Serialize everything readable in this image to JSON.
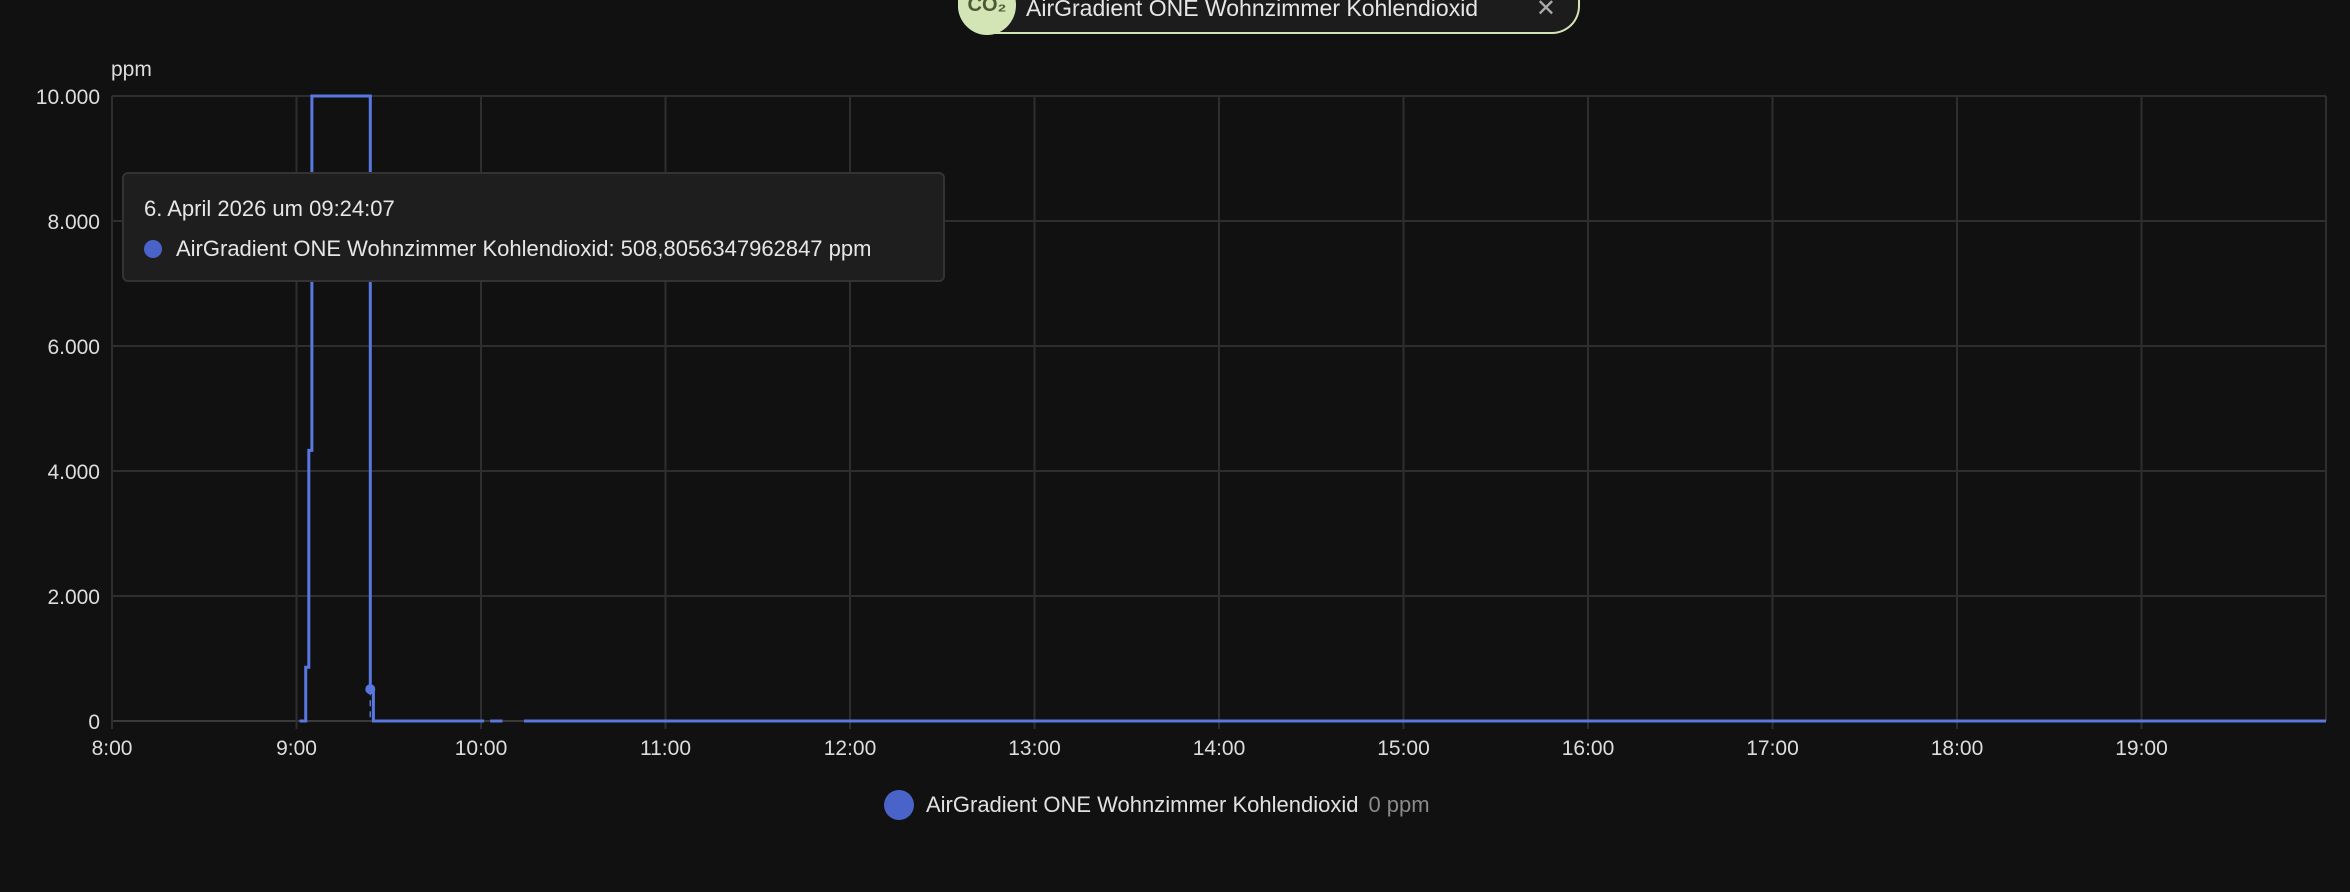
{
  "filter_chip": {
    "icon": "co2-icon",
    "label": "AirGradient ONE Wohnzimmer Kohlendioxid",
    "close": "✕",
    "accent": "#d4e5b5"
  },
  "tooltip": {
    "title": "6. April 2026 um 09:24:07",
    "text": "AirGradient ONE Wohnzimmer Kohlendioxid: 508,8056347962847 ppm"
  },
  "legend": {
    "label": "AirGradient ONE Wohnzimmer Kohlendioxid",
    "value": "0 ppm"
  },
  "chart_data": {
    "type": "line",
    "step": true,
    "ylabel": "ppm",
    "ylim": [
      0,
      10000
    ],
    "yticks": [
      "0",
      "2.000",
      "4.000",
      "6.000",
      "8.000",
      "10.000"
    ],
    "ytick_values": [
      0,
      2000,
      4000,
      6000,
      8000,
      10000
    ],
    "xlim": [
      "8:00",
      "20:00"
    ],
    "xticks": [
      "8:00",
      "9:00",
      "10:00",
      "11:00",
      "12:00",
      "13:00",
      "14:00",
      "15:00",
      "16:00",
      "17:00",
      "18:00",
      "19:00"
    ],
    "grid": true,
    "color": "#5878e0",
    "series": [
      {
        "name": "AirGradient ONE Wohnzimmer Kohlendioxid",
        "segments": [
          [
            [
              "9:01",
              0
            ],
            [
              "9:03",
              860
            ],
            [
              "9:04",
              4330
            ],
            [
              "9:05",
              10000
            ],
            [
              "9:24",
              508.8
            ],
            [
              "9:25",
              0
            ],
            [
              "10:01",
              0
            ]
          ],
          [
            [
              "10:03",
              0
            ],
            [
              "10:07",
              0
            ]
          ],
          [
            [
              "10:14",
              0
            ],
            [
              "20:00",
              0
            ]
          ]
        ]
      }
    ],
    "highlight": {
      "x": "9:24",
      "y": 508.8
    }
  }
}
